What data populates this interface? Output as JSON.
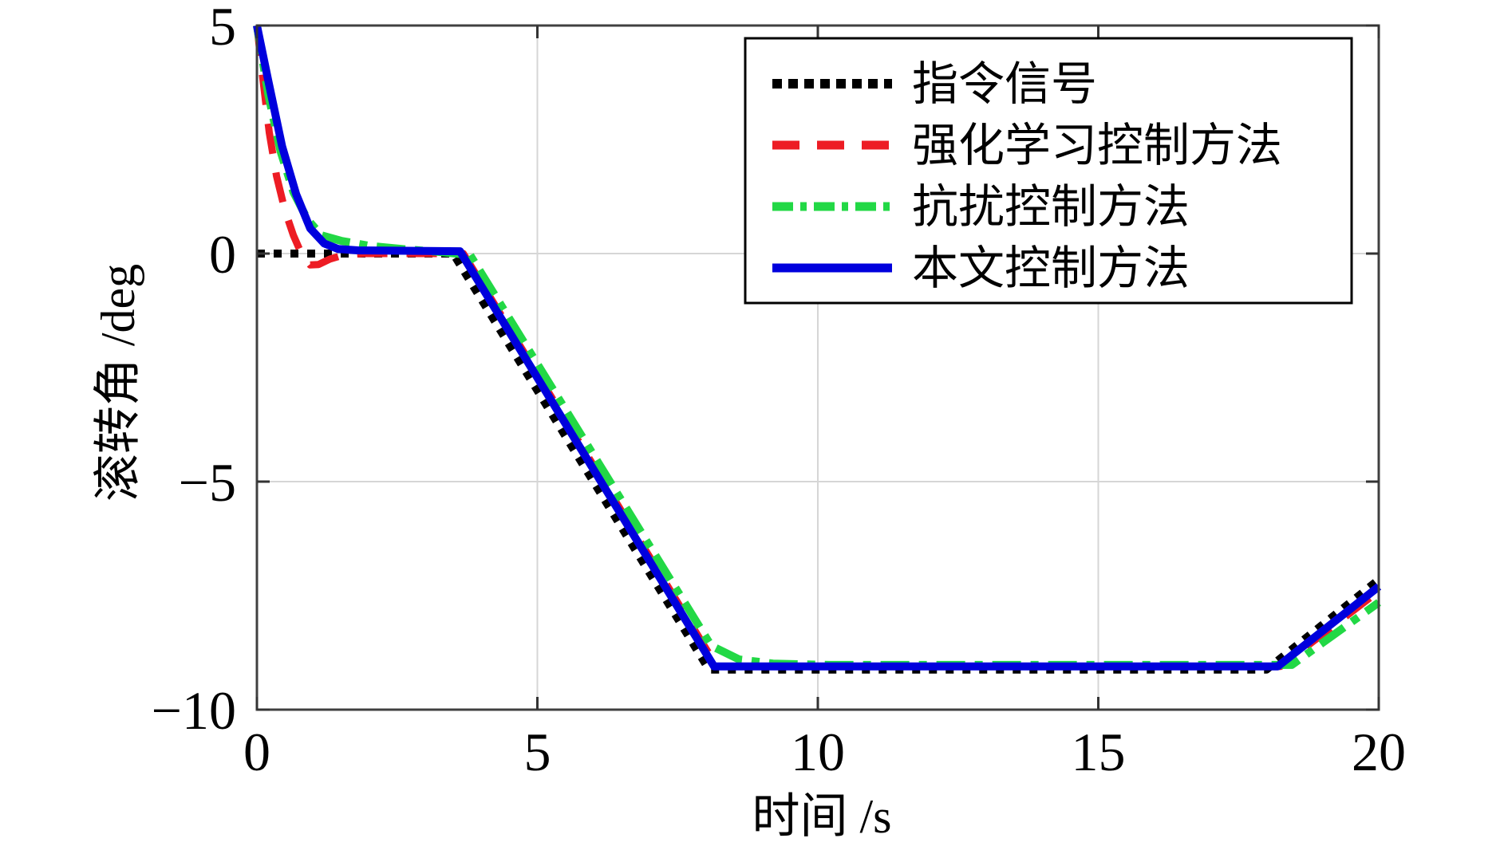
{
  "figure": {
    "background": "#ffffff",
    "frame_color": "#404040",
    "grid_color": "#d6d6d6",
    "tick_color": "#333333"
  },
  "chart_data": {
    "type": "line",
    "title": "",
    "xlabel": "时间 /s",
    "ylabel": "滚转角 /deg",
    "xlim": [
      0,
      20
    ],
    "ylim": [
      -10,
      5
    ],
    "x_ticks": [
      0,
      5,
      10,
      15,
      20
    ],
    "x_tick_labels": [
      "0",
      "5",
      "10",
      "15",
      "20"
    ],
    "y_ticks": [
      5,
      0,
      -5,
      -10
    ],
    "y_tick_labels": [
      "5",
      "0",
      "−5",
      "−10"
    ],
    "grid": true,
    "legend_position": "top-right",
    "series": [
      {
        "name": "指令信号",
        "color": "#000000",
        "style": "dotted",
        "points": [
          [
            0,
            0
          ],
          [
            3.5,
            0
          ],
          [
            8.06,
            -9.12
          ],
          [
            18.0,
            -9.12
          ],
          [
            20,
            -7.15
          ]
        ]
      },
      {
        "name": "强化学习控制方法",
        "color": "#ed1c24",
        "style": "dashed",
        "points": [
          [
            0,
            5
          ],
          [
            0.1,
            3.9
          ],
          [
            0.22,
            2.65
          ],
          [
            0.35,
            1.7
          ],
          [
            0.5,
            0.95
          ],
          [
            0.65,
            0.4
          ],
          [
            0.8,
            -0.02
          ],
          [
            0.95,
            -0.25
          ],
          [
            1.1,
            -0.24
          ],
          [
            1.3,
            -0.12
          ],
          [
            1.55,
            -0.03
          ],
          [
            1.9,
            0
          ],
          [
            3.68,
            0
          ],
          [
            8.2,
            -9.05
          ],
          [
            18.25,
            -9.05
          ],
          [
            20,
            -7.4
          ]
        ]
      },
      {
        "name": "抗扰控制方法",
        "color": "#22d845",
        "style": "dashdot",
        "points": [
          [
            0,
            5
          ],
          [
            0.2,
            3.5
          ],
          [
            0.42,
            2.25
          ],
          [
            0.65,
            1.35
          ],
          [
            0.9,
            0.75
          ],
          [
            1.15,
            0.4
          ],
          [
            1.5,
            0.28
          ],
          [
            2.0,
            0.17
          ],
          [
            2.6,
            0.1
          ],
          [
            3.2,
            0.04
          ],
          [
            3.8,
            -0.03
          ],
          [
            8.1,
            -8.6
          ],
          [
            8.6,
            -8.9
          ],
          [
            9.2,
            -8.99
          ],
          [
            10.2,
            -9.02
          ],
          [
            18.45,
            -9.02
          ],
          [
            20,
            -7.65
          ]
        ]
      },
      {
        "name": "本文控制方法",
        "color": "#0000dd",
        "style": "solid",
        "points": [
          [
            0,
            5
          ],
          [
            0.2,
            3.8
          ],
          [
            0.45,
            2.35
          ],
          [
            0.7,
            1.3
          ],
          [
            0.95,
            0.55
          ],
          [
            1.2,
            0.22
          ],
          [
            1.45,
            0.1
          ],
          [
            1.8,
            0.07
          ],
          [
            3.62,
            0.05
          ],
          [
            8.15,
            -9.05
          ],
          [
            18.2,
            -9.05
          ],
          [
            20,
            -7.3
          ]
        ]
      }
    ]
  }
}
